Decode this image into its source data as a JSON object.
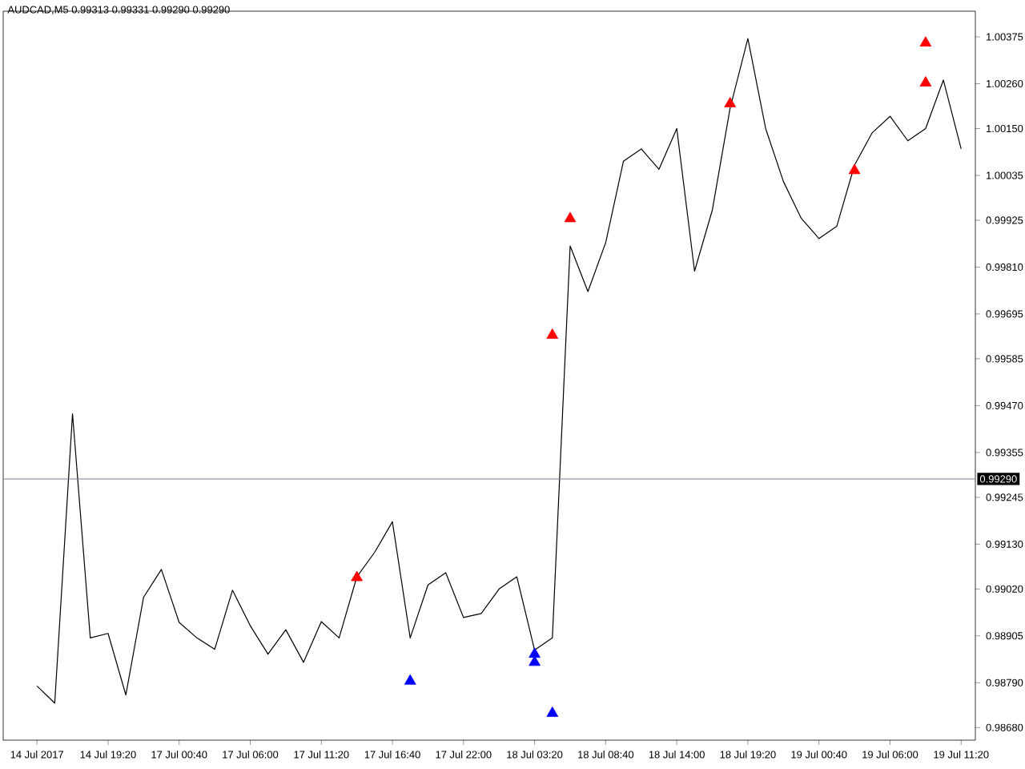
{
  "chart_data": {
    "type": "line",
    "title": "AUDCAD,M5  0.99313 0.99331 0.99290 0.99290",
    "categories": [
      "14 Jul 2017",
      null,
      null,
      null,
      "14 Jul 19:20",
      null,
      null,
      null,
      "17 Jul 00:40",
      null,
      null,
      null,
      "17 Jul 06:00",
      null,
      null,
      null,
      "17 Jul 11:20",
      null,
      null,
      null,
      "17 Jul 16:40",
      null,
      null,
      null,
      "17 Jul 22:00",
      null,
      null,
      null,
      "18 Jul 03:20",
      null,
      null,
      null,
      "18 Jul 08:40",
      null,
      null,
      null,
      "18 Jul 14:00",
      null,
      null,
      null,
      "18 Jul 19:20",
      null,
      null,
      null,
      "19 Jul 00:40",
      null,
      null,
      null,
      "19 Jul 06:00",
      null,
      null,
      null,
      "19 Jul 11:20"
    ],
    "ylim": [
      0.98649,
      1.00438
    ],
    "yticks": [
      {
        "value": 0.9868,
        "label": "0.98680"
      },
      {
        "value": 0.9879,
        "label": "0.98790"
      },
      {
        "value": 0.98905,
        "label": "0.98905"
      },
      {
        "value": 0.9902,
        "label": "0.99020"
      },
      {
        "value": 0.9913,
        "label": "0.99130"
      },
      {
        "value": 0.99245,
        "label": "0.99245"
      },
      {
        "value": 0.99355,
        "label": "0.99355"
      },
      {
        "value": 0.9947,
        "label": "0.99470"
      },
      {
        "value": 0.99585,
        "label": "0.99585"
      },
      {
        "value": 0.99695,
        "label": "0.99695"
      },
      {
        "value": 0.9981,
        "label": "0.99810"
      },
      {
        "value": 0.99925,
        "label": "0.99925"
      },
      {
        "value": 1.00035,
        "label": "1.00035"
      },
      {
        "value": 1.0015,
        "label": "1.00150"
      },
      {
        "value": 1.0026,
        "label": "1.00260"
      },
      {
        "value": 1.00375,
        "label": "1.00375"
      }
    ],
    "ref_lines": [
      {
        "axis": "y",
        "value": 0.9929,
        "label": "0.99290",
        "color": "#708090"
      }
    ],
    "series": [
      {
        "color": "#000000",
        "values": [
          0.98782,
          0.9874,
          0.9945,
          0.989,
          0.98911,
          0.9876,
          0.99,
          0.99068,
          0.98938,
          0.989,
          0.98872,
          0.99017,
          0.9893,
          0.9886,
          0.9892,
          0.9884,
          0.9894,
          0.989,
          0.9905,
          0.9911,
          0.99185,
          0.989,
          0.9903,
          0.9906,
          0.9895,
          0.9896,
          0.9902,
          0.9905,
          0.9887,
          0.989,
          0.99862,
          0.9975,
          0.9987,
          1.0007,
          1.001,
          1.0005,
          1.0015,
          0.998,
          0.9995,
          1.002,
          1.00371,
          1.0015,
          1.0002,
          0.9993,
          0.9988,
          0.9991,
          1.0006,
          1.0014,
          1.0018,
          1.0012,
          1.0015,
          1.00269,
          1.001
        ]
      },
      {
        "type": "scatter",
        "color": "#ff0000",
        "marker": "triangle",
        "values": [
          null,
          null,
          null,
          null,
          null,
          null,
          null,
          null,
          null,
          null,
          null,
          null,
          null,
          null,
          null,
          null,
          null,
          null,
          0.99048,
          null,
          null,
          null,
          null,
          null,
          null,
          null,
          null,
          null,
          null,
          0.99643,
          null,
          null,
          null,
          null,
          null,
          null,
          null,
          null,
          null,
          1.00211,
          null,
          null,
          null,
          null,
          null,
          null,
          1.00047,
          null,
          null,
          null,
          1.00262,
          null,
          null
        ]
      },
      {
        "type": "scatter",
        "color": "#ff0000",
        "marker": "triangle",
        "values": [
          null,
          null,
          null,
          null,
          null,
          null,
          null,
          null,
          null,
          null,
          null,
          null,
          null,
          null,
          null,
          null,
          null,
          null,
          null,
          null,
          null,
          null,
          null,
          null,
          null,
          null,
          null,
          null,
          null,
          null,
          0.99929,
          null,
          null,
          null,
          null,
          null,
          null,
          null,
          null,
          null,
          null,
          null,
          null,
          null,
          null,
          null,
          null,
          null,
          null,
          null,
          1.0036,
          null,
          null
        ]
      },
      {
        "type": "scatter",
        "color": "#0000ff",
        "marker": "triangle",
        "values": [
          null,
          null,
          null,
          null,
          null,
          null,
          null,
          null,
          null,
          null,
          null,
          null,
          null,
          null,
          null,
          null,
          null,
          null,
          null,
          null,
          null,
          0.98794,
          null,
          null,
          null,
          null,
          null,
          null,
          0.9886,
          0.98715,
          null,
          null,
          null,
          null,
          null,
          null,
          null,
          null,
          null,
          null,
          null,
          null,
          null,
          null,
          null,
          null,
          null,
          null,
          null,
          null,
          null,
          null,
          null
        ]
      },
      {
        "type": "scatter",
        "color": "#0000ff",
        "marker": "triangle",
        "values": [
          null,
          null,
          null,
          null,
          null,
          null,
          null,
          null,
          null,
          null,
          null,
          null,
          null,
          null,
          null,
          null,
          null,
          null,
          null,
          null,
          null,
          null,
          null,
          null,
          null,
          null,
          null,
          null,
          0.9884,
          null,
          null,
          null,
          null,
          null,
          null,
          null,
          null,
          null,
          null,
          null,
          null,
          null,
          null,
          null,
          null,
          null,
          null,
          null,
          null,
          null,
          null,
          null,
          null
        ]
      }
    ]
  }
}
